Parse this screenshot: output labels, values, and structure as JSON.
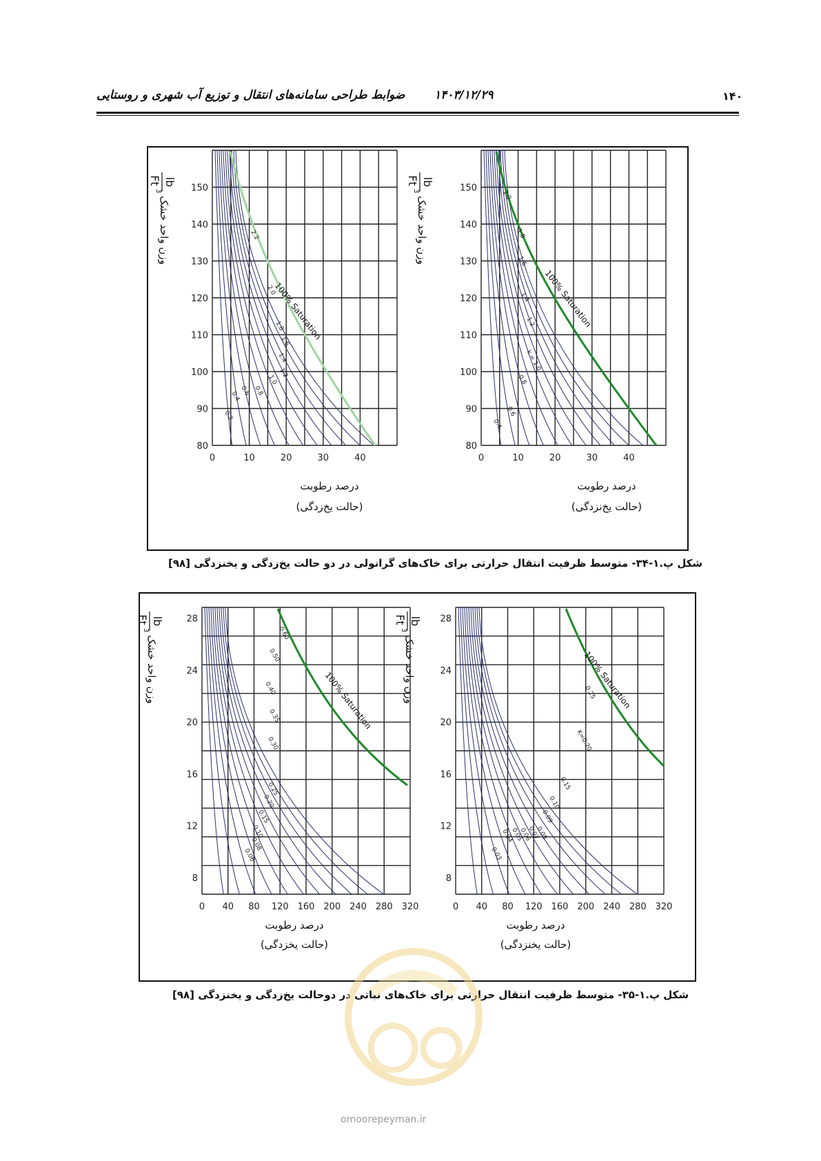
{
  "header": {
    "page_number": "۱۴۰",
    "date": "۱۴۰۳/۱۲/۲۹",
    "title": "ضوابط طراحی سامانه‌های انتقال و توزیع آب شهری و روستایی"
  },
  "figure_1": {
    "caption": "شکل پ.۱-۳۴- متوسط ظرفیت انتقال حرارتی برای خاک‌های گرانولی در دو حالت یخ‌زدگی و یخنزدگی [۹۸]",
    "y_unit_num": "lb",
    "y_unit_den": "Ft",
    "y_unit_exp": "3",
    "y_label": "وزن واحد خشک",
    "x_label": "درصد رطوبت",
    "panels": [
      {
        "state": "(حالت یخ‌زدگی)",
        "saturation_label": "100% Saturation",
        "curve_labels": [
          "2.2",
          "2.0",
          "1.8",
          "1.6",
          "1.4",
          "1.2",
          "1.0",
          "0.8",
          "0.6",
          "0.4",
          "0.2"
        ]
      },
      {
        "state": "(حالت یخ‌نزدگی)",
        "saturation_label": "100% Saturation",
        "curve_labels": [
          "2.0",
          "1.8",
          "1.6",
          "1.4",
          "1.2",
          "k = 1.0",
          "0.8",
          "0.6",
          "0.4"
        ]
      }
    ],
    "x_ticks": [
      "0",
      "10",
      "20",
      "30",
      "40"
    ],
    "y_ticks": [
      "80",
      "90",
      "100",
      "110",
      "120",
      "130",
      "140",
      "150"
    ]
  },
  "figure_2": {
    "caption": "شکل پ.۱-۳۵- متوسط ظرفیت انتقال حرارتی برای خاک‌های نباتی در دوحالت یخ‌زدگی و یخنزدگی [۹۸]",
    "y_unit_num": "lb",
    "y_unit_den": "Ft",
    "y_unit_exp": "3",
    "y_label": "وزن واحد خشک",
    "x_label": "درصد رطوبت",
    "panels": [
      {
        "state": "(حالت یخزدگی)",
        "saturation_label": "100% Saturation",
        "curve_labels": [
          "0.60",
          "0.50",
          "0.40",
          "0.35",
          "0.30",
          "0.25",
          "0.20",
          "0.15",
          "0.10",
          "0.08",
          "0.06"
        ]
      },
      {
        "state": "(حالت یخنزدگی)",
        "saturation_label": "100% Saturation",
        "curve_labels": [
          "0.25",
          "K=0.20",
          "0.15",
          "0.10",
          "0.09",
          "0.08",
          "0.07",
          "0.06",
          "0.05",
          "0.04",
          "0.03"
        ]
      }
    ],
    "x_ticks": [
      "0",
      "40",
      "80",
      "120",
      "160",
      "200",
      "240",
      "280",
      "320"
    ],
    "y_ticks": [
      "8",
      "12",
      "16",
      "20",
      "24",
      "28"
    ]
  },
  "watermark": {
    "text": "omoorepeyman.ir"
  },
  "colors": {
    "saturation_green_frozen": "#9fd6a0",
    "saturation_green": "#1f8a2a",
    "curve_blue": "#2a2f6e"
  }
}
